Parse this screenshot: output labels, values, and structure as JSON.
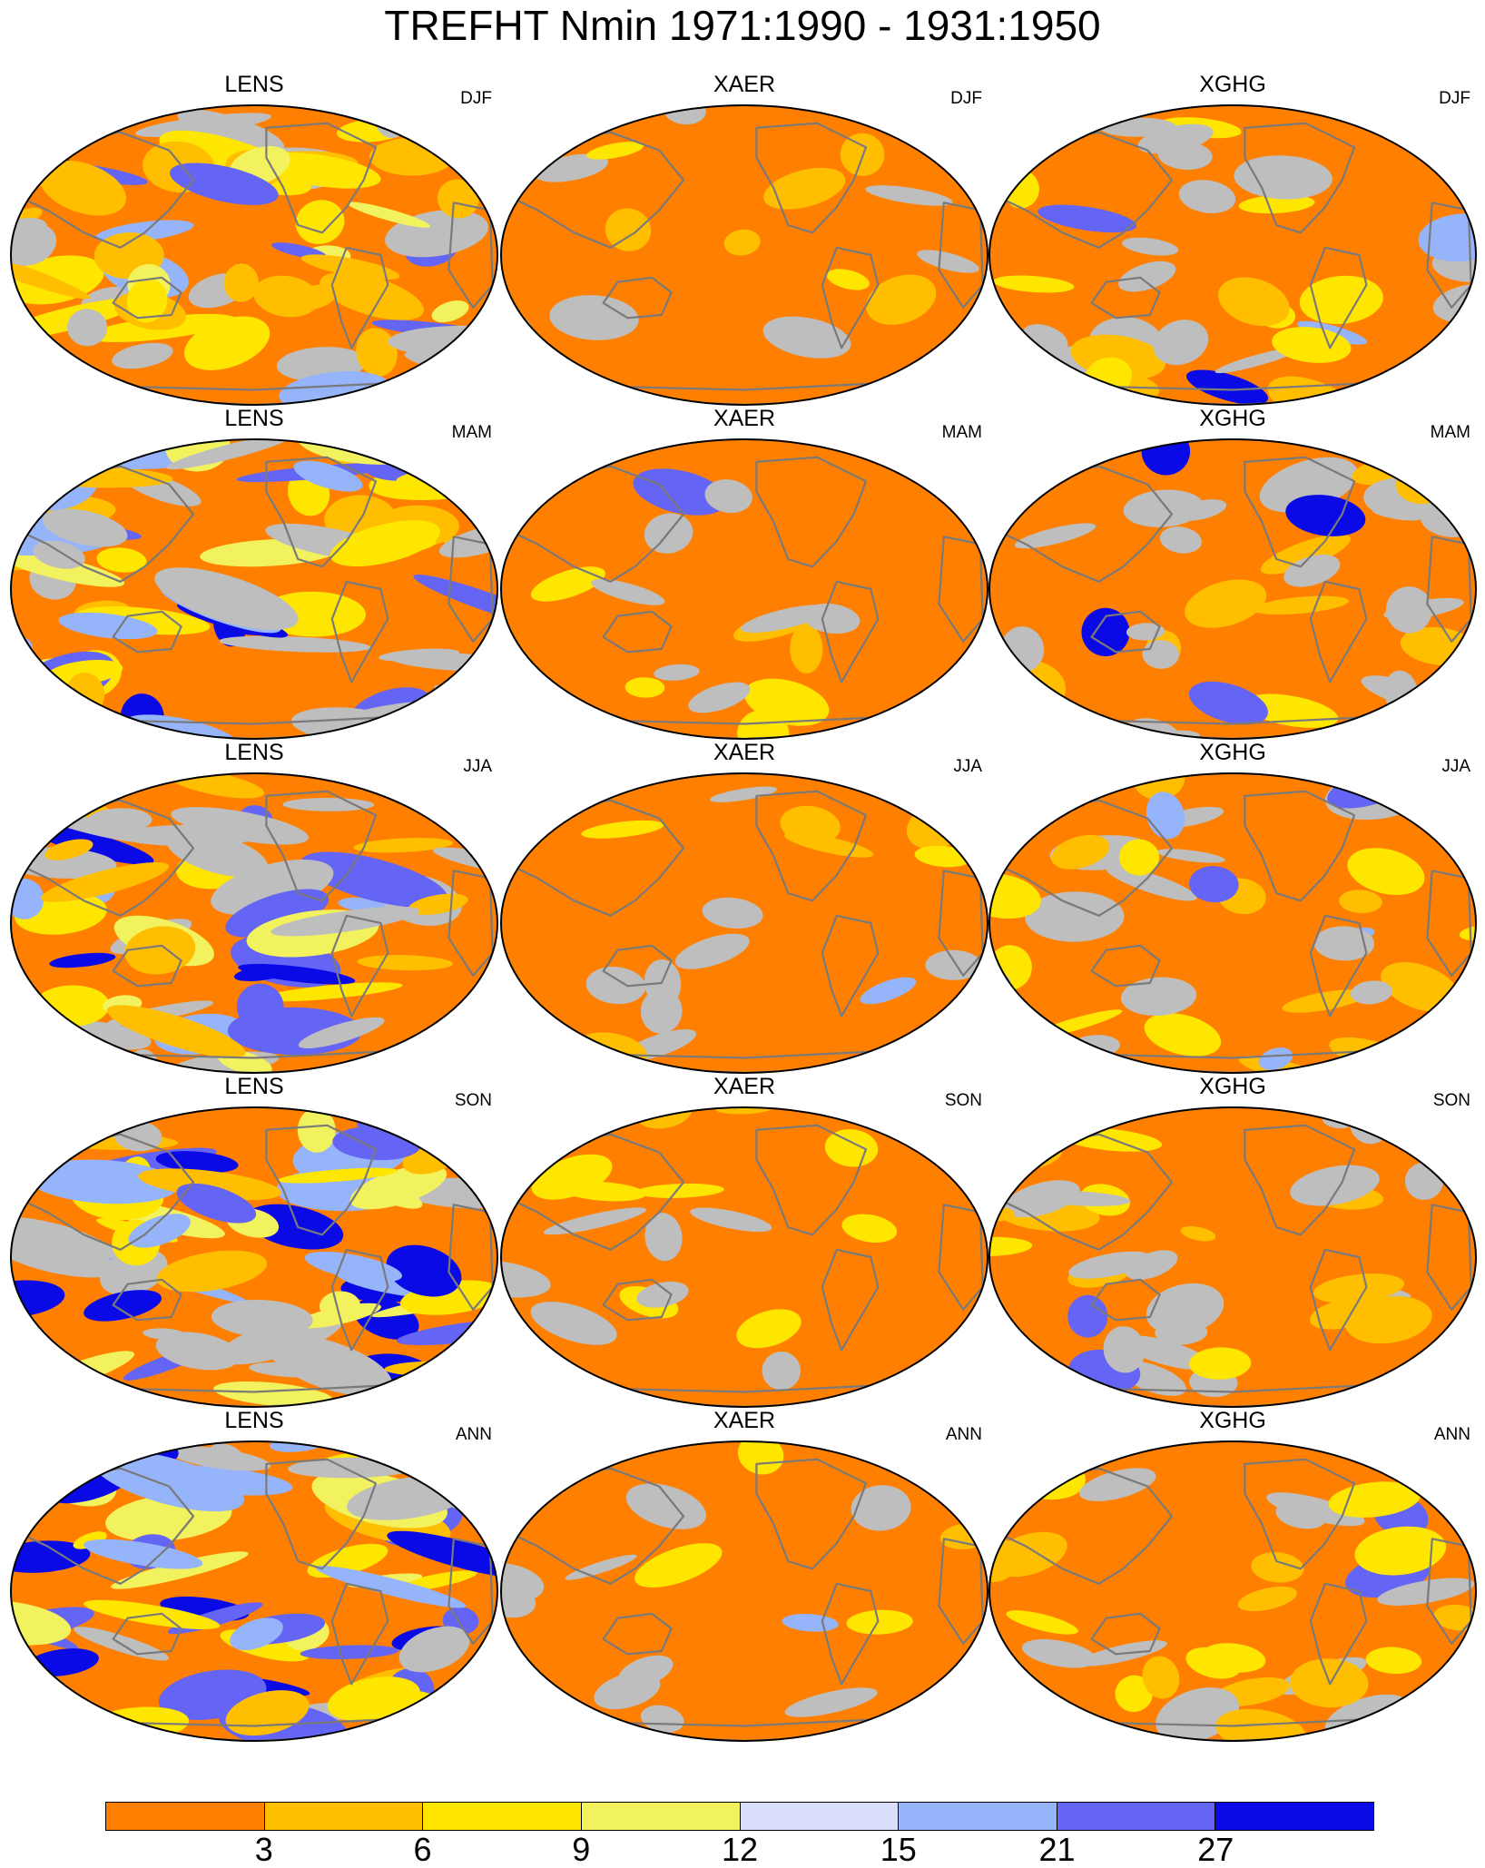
{
  "title": "TREFHT Nmin 1971:1990 - 1931:1950",
  "columns": [
    "LENS",
    "XAER",
    "XGHG"
  ],
  "rows": [
    "DJF",
    "MAM",
    "JJA",
    "SON",
    "ANN"
  ],
  "colorbar": {
    "labels": [
      "3",
      "6",
      "9",
      "12",
      "15",
      "21",
      "27"
    ],
    "colors": [
      "#ff7f00",
      "#ffbf00",
      "#ffe600",
      "#f2f25e",
      "#d9defa",
      "#96b4fa",
      "#6464f5",
      "#0a0ae6"
    ]
  },
  "map_colors": {
    "land_outline": "#7a7a7a",
    "gray_region": "#bebebe",
    "background_low": "#ff7f00"
  },
  "panel_character": {
    "LENS": {
      "dominant": "mixed",
      "blue_share": 0.35
    },
    "XAER": {
      "dominant": "low",
      "blue_share": 0.02
    },
    "XGHG": {
      "dominant": "low",
      "blue_share": 0.1
    }
  }
}
